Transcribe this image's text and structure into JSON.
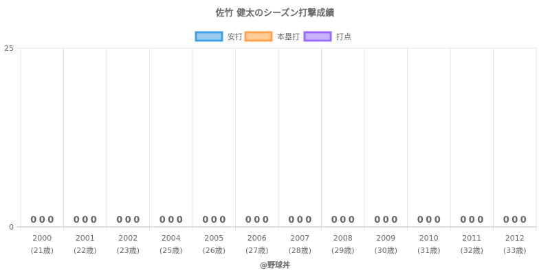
{
  "chart_data": {
    "type": "bar",
    "title": "佐竹 健太のシーズン打撃成績",
    "categories": [
      "2000",
      "2001",
      "2002",
      "2004",
      "2005",
      "2006",
      "2007",
      "2008",
      "2009",
      "2010",
      "2011",
      "2012"
    ],
    "category_sublabels": [
      "(21歳)",
      "(22歳)",
      "(23歳)",
      "(25歳)",
      "(26歳)",
      "(27歳)",
      "(28歳)",
      "(29歳)",
      "(30歳)",
      "(31歳)",
      "(32歳)",
      "(33歳)"
    ],
    "series": [
      {
        "name": "安打",
        "values": [
          0,
          0,
          0,
          0,
          0,
          0,
          0,
          0,
          0,
          0,
          0,
          0
        ],
        "fill": "#9ccbf2",
        "stroke": "#3ea1e6"
      },
      {
        "name": "本塁打",
        "values": [
          0,
          0,
          0,
          0,
          0,
          0,
          0,
          0,
          0,
          0,
          0,
          0
        ],
        "fill": "#ffcc99",
        "stroke": "#ffa04d"
      },
      {
        "name": "打点",
        "values": [
          0,
          0,
          0,
          0,
          0,
          0,
          0,
          0,
          0,
          0,
          0,
          0
        ],
        "fill": "#c9b3ff",
        "stroke": "#9b6bff"
      }
    ],
    "ylim": [
      0,
      25
    ],
    "y_ticks": [
      "0",
      "25"
    ],
    "legend_position": "top",
    "grid": true,
    "footer": "@野球丼"
  }
}
